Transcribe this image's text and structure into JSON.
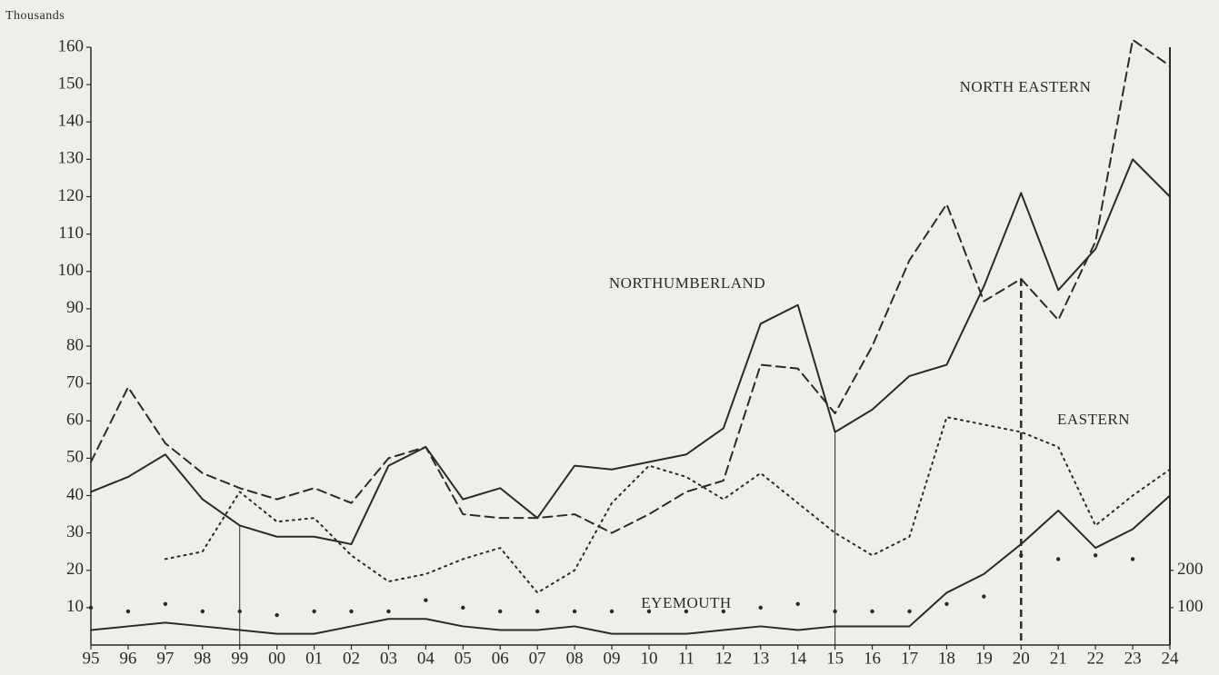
{
  "chart_data": {
    "type": "line",
    "y_label": "Thousands",
    "categories": [
      "95",
      "96",
      "97",
      "98",
      "99",
      "00",
      "01",
      "02",
      "03",
      "04",
      "05",
      "06",
      "07",
      "08",
      "09",
      "10",
      "11",
      "12",
      "13",
      "14",
      "15",
      "16",
      "17",
      "18",
      "19",
      "20",
      "21",
      "22",
      "23",
      "24"
    ],
    "ylim": [
      0,
      160
    ],
    "yticks": [
      10,
      20,
      30,
      40,
      50,
      60,
      70,
      80,
      90,
      100,
      110,
      120,
      130,
      140,
      150,
      160
    ],
    "y2lim": [
      0,
      1600
    ],
    "y2ticks": [
      100,
      200
    ],
    "series": [
      {
        "name": "NORTH EASTERN",
        "color": "#2a2a2a",
        "dash": "dashed",
        "values": [
          49,
          69,
          54,
          46,
          42,
          39,
          42,
          38,
          50,
          53,
          35,
          34,
          34,
          35,
          30,
          35,
          41,
          44,
          75,
          74,
          62,
          80,
          103,
          118,
          92,
          98,
          87,
          108,
          162,
          155
        ]
      },
      {
        "name": "NORTHUMBERLAND",
        "color": "#2a2a2a",
        "dash": "solid",
        "values": [
          41,
          45,
          51,
          39,
          32,
          29,
          29,
          27,
          48,
          53,
          39,
          42,
          34,
          48,
          47,
          49,
          51,
          58,
          86,
          91,
          57,
          63,
          72,
          75,
          96,
          121,
          95,
          106,
          130,
          120
        ]
      },
      {
        "name": "EASTERN",
        "color": "#2a2a2a",
        "dash": "dotted",
        "values": [
          null,
          null,
          23,
          25,
          41,
          33,
          34,
          24,
          17,
          19,
          23,
          26,
          14,
          20,
          38,
          48,
          45,
          39,
          46,
          38,
          30,
          24,
          29,
          61,
          59,
          57,
          53,
          32,
          40,
          47
        ]
      },
      {
        "name": "EYEMOUTH",
        "color": "#2a2a2a",
        "dash": "solid",
        "values": [
          4,
          5,
          6,
          5,
          4,
          3,
          3,
          5,
          7,
          7,
          5,
          4,
          4,
          5,
          3,
          3,
          3,
          4,
          5,
          4,
          5,
          5,
          5,
          14,
          19,
          27,
          36,
          26,
          31,
          40
        ]
      },
      {
        "color": "#2a2a2a",
        "dash": "markers",
        "values": [
          10,
          9,
          11,
          9,
          9,
          8,
          9,
          9,
          9,
          12,
          10,
          9,
          9,
          9,
          9,
          9,
          9,
          9,
          10,
          11,
          9,
          9,
          9,
          11,
          13,
          24,
          23,
          24,
          23,
          null
        ]
      }
    ]
  }
}
